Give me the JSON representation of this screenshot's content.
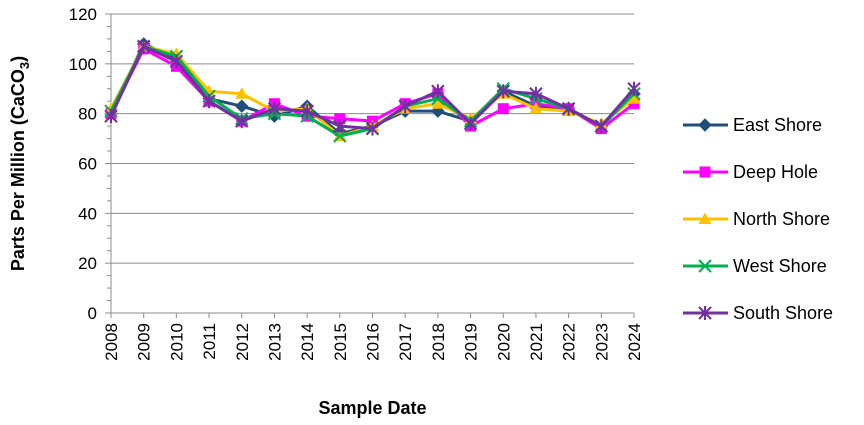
{
  "chart_data": {
    "type": "line",
    "title": "",
    "xlabel": "Sample Date",
    "ylabel": "Parts Per Million (CaCO",
    "ylabel_subscript": "3",
    "ylabel_close": ")",
    "ylim": [
      0,
      120
    ],
    "yticks": [
      0,
      20,
      40,
      60,
      80,
      100,
      120
    ],
    "grid": true,
    "legend_position": "right",
    "categories": [
      "2008",
      "2009",
      "2010",
      "2011",
      "2012",
      "2013",
      "2014",
      "2015",
      "2016",
      "2017",
      "2018",
      "2019",
      "2020",
      "2021",
      "2022",
      "2023",
      "2024"
    ],
    "series": [
      {
        "name": "East Shore",
        "color": "#1F4E79",
        "marker": "diamond",
        "values": [
          80,
          108,
          102,
          86,
          83,
          79,
          83,
          72,
          75,
          81,
          81,
          77,
          89,
          83,
          82,
          75,
          88
        ]
      },
      {
        "name": "Deep Hole",
        "color": "#FF00FF",
        "marker": "square",
        "values": [
          80,
          106,
          99,
          85,
          77,
          84,
          79,
          78,
          77,
          84,
          88,
          75,
          82,
          84,
          82,
          74,
          84
        ]
      },
      {
        "name": "North Shore",
        "color": "#FFC000",
        "marker": "triangle",
        "values": [
          82,
          107,
          104,
          89,
          88,
          81,
          82,
          71,
          75,
          82,
          84,
          78,
          88,
          82,
          81,
          76,
          86
        ]
      },
      {
        "name": "West Shore",
        "color": "#00B050",
        "marker": "x",
        "values": [
          81,
          107,
          103,
          87,
          78,
          80,
          79,
          71,
          74,
          83,
          86,
          77,
          90,
          86,
          82,
          75,
          88
        ]
      },
      {
        "name": "South Shore",
        "color": "#7030A0",
        "marker": "star",
        "values": [
          79,
          107,
          101,
          85,
          77,
          82,
          81,
          75,
          74,
          83,
          89,
          76,
          89,
          88,
          82,
          75,
          90
        ]
      }
    ]
  }
}
